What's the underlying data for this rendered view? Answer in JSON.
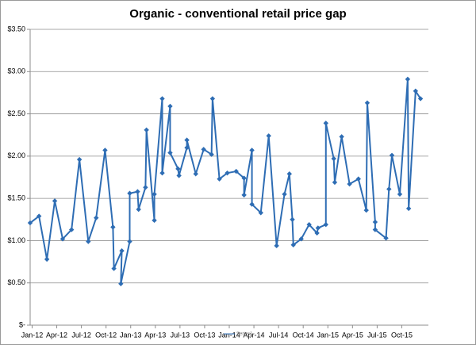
{
  "chart_data": {
    "type": "line",
    "title": "Organic - conventional  retail price gap",
    "x": [
      2011.98,
      2012.07,
      2012.15,
      2012.23,
      2012.31,
      2012.4,
      2012.48,
      2012.57,
      2012.65,
      2012.74,
      2012.82,
      2012.83,
      2012.91,
      2012.9,
      2012.99,
      2012.99,
      2013.07,
      2013.08,
      2013.15,
      2013.16,
      2013.24,
      2013.24,
      2013.32,
      2013.32,
      2013.4,
      2013.4,
      2013.48,
      2013.49,
      2013.57,
      2013.57,
      2013.66,
      2013.74,
      2013.82,
      2013.83,
      2013.9,
      2013.98,
      2014.07,
      2014.15,
      2014.15,
      2014.23,
      2014.23,
      2014.32,
      2014.4,
      2014.48,
      2014.56,
      2014.61,
      2014.64,
      2014.65,
      2014.73,
      2014.81,
      2014.89,
      2014.9,
      2014.98,
      2014.98,
      2015.06,
      2015.07,
      2015.14,
      2015.22,
      2015.31,
      2015.39,
      2015.4,
      2015.48,
      2015.48,
      2015.59,
      2015.62,
      2015.65,
      2015.73,
      2015.81,
      2015.82,
      2015.89,
      2015.94
    ],
    "series": [
      {
        "name": "Series1",
        "color": "#2e6db4",
        "values": [
          1.21,
          1.29,
          0.78,
          1.47,
          1.02,
          1.13,
          1.96,
          0.99,
          1.27,
          2.07,
          1.16,
          0.67,
          0.88,
          0.49,
          0.99,
          1.56,
          1.58,
          1.37,
          1.63,
          2.31,
          1.24,
          1.55,
          2.68,
          1.8,
          2.59,
          2.04,
          1.85,
          1.77,
          2.1,
          2.19,
          1.79,
          2.08,
          2.02,
          2.68,
          1.73,
          1.8,
          1.82,
          1.74,
          1.54,
          2.07,
          1.43,
          1.33,
          2.24,
          0.94,
          1.55,
          1.79,
          1.25,
          0.95,
          1.02,
          1.19,
          1.09,
          1.15,
          1.19,
          2.39,
          1.97,
          1.69,
          2.23,
          1.67,
          1.73,
          1.36,
          2.63,
          1.22,
          1.13,
          1.03,
          1.61,
          2.01,
          1.55,
          2.91,
          1.38,
          2.77,
          2.68
        ]
      }
    ],
    "xlim": [
      2011.98,
      2016.02
    ],
    "xticks": [
      {
        "value": 2012,
        "label": "Jan-12"
      },
      {
        "value": 2012.25,
        "label": "Apr-12"
      },
      {
        "value": 2012.5,
        "label": "Jul-12"
      },
      {
        "value": 2012.75,
        "label": "Oct-12"
      },
      {
        "value": 2013,
        "label": "Jan-13"
      },
      {
        "value": 2013.25,
        "label": "Apr-13"
      },
      {
        "value": 2013.5,
        "label": "Jul-13"
      },
      {
        "value": 2013.75,
        "label": "Oct-13"
      },
      {
        "value": 2014,
        "label": "Jan-14"
      },
      {
        "value": 2014.25,
        "label": "Apr-14"
      },
      {
        "value": 2014.5,
        "label": "Jul-14"
      },
      {
        "value": 2014.75,
        "label": "Oct-14"
      },
      {
        "value": 2015,
        "label": "Jan-15"
      },
      {
        "value": 2015.25,
        "label": "Apr-15"
      },
      {
        "value": 2015.5,
        "label": "Jul-15"
      },
      {
        "value": 2015.75,
        "label": "Oct-15"
      }
    ],
    "ylim": [
      0,
      3.5
    ],
    "yticks": [
      {
        "value": 0,
        "label": "$-"
      },
      {
        "value": 0.5,
        "label": "$0.50"
      },
      {
        "value": 1,
        "label": "$1.00"
      },
      {
        "value": 1.5,
        "label": "$1.50"
      },
      {
        "value": 2,
        "label": "$2.00"
      },
      {
        "value": 2.5,
        "label": "$2.50"
      },
      {
        "value": 3,
        "label": "$3.00"
      },
      {
        "value": 3.5,
        "label": "$3.50"
      }
    ],
    "grid": true
  }
}
